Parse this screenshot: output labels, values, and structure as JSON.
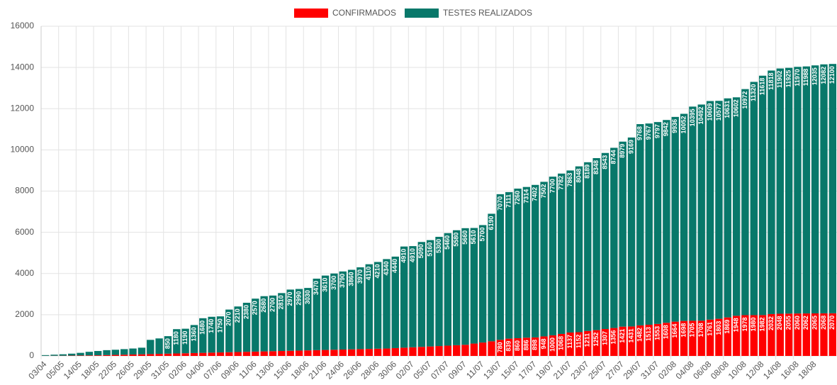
{
  "chart_data": {
    "type": "stacked_bar",
    "categories": [
      "03/04",
      null,
      "05/05",
      null,
      "14/05",
      null,
      "18/05",
      null,
      "22/05",
      null,
      "26/05",
      null,
      "29/05",
      null,
      "31/05",
      null,
      "02/06",
      null,
      "04/06",
      null,
      "07/06",
      null,
      "09/06",
      null,
      "11/06",
      null,
      "13/06",
      null,
      "15/06",
      null,
      "18/06",
      null,
      "21/06",
      null,
      "24/06",
      null,
      "26/06",
      null,
      "28/06",
      null,
      "30/06",
      null,
      "02/07",
      null,
      "05/07",
      null,
      "07/07",
      null,
      "09/07",
      null,
      "11/07",
      null,
      "13/07",
      null,
      "15/07",
      null,
      "17/07",
      null,
      "19/07",
      null,
      "21/07",
      null,
      "23/07",
      null,
      "25/07",
      null,
      "27/07",
      null,
      "29/07",
      null,
      "31/07",
      null,
      "02/08",
      null,
      "04/08",
      null,
      "06/08",
      null,
      "08/08",
      null,
      "10/08",
      null,
      "12/08",
      null,
      "14/08",
      null,
      "16/08",
      null,
      "18/08",
      null,
      null
    ],
    "series": [
      {
        "name": "CONFIRMADOS",
        "color": "#ff0000",
        "values": [
          5,
          8,
          10,
          15,
          20,
          25,
          30,
          40,
          50,
          60,
          70,
          80,
          90,
          100,
          110,
          120,
          130,
          140,
          150,
          160,
          170,
          180,
          190,
          200,
          210,
          220,
          230,
          240,
          250,
          260,
          270,
          280,
          290,
          300,
          310,
          320,
          330,
          340,
          350,
          360,
          380,
          400,
          420,
          440,
          460,
          480,
          500,
          520,
          540,
          600,
          650,
          710,
          780,
          839,
          860,
          886,
          898,
          948,
          1000,
          1068,
          1137,
          1152,
          1211,
          1252,
          1307,
          1356,
          1421,
          1431,
          1482,
          1513,
          1553,
          1608,
          1664,
          1698,
          1705,
          1708,
          1761,
          1803,
          1869,
          1948,
          1978,
          1980,
          1982,
          2032,
          2048,
          2055,
          2060,
          2062,
          2065,
          2068,
          2070
        ]
      },
      {
        "name": "TESTES REALIZADOS",
        "color": "#08786a",
        "values": [
          35,
          52,
          70,
          95,
          130,
          175,
          210,
          240,
          250,
          270,
          290,
          320,
          690,
          750,
          850,
          1180,
          1190,
          1360,
          1680,
          1740,
          1750,
          2070,
          2210,
          2380,
          2570,
          2680,
          2700,
          2810,
          2970,
          2990,
          3030,
          3470,
          3610,
          3700,
          3790,
          3860,
          3970,
          4110,
          4210,
          4340,
          4440,
          4910,
          4910,
          5090,
          5160,
          5300,
          5460,
          5580,
          5660,
          5610,
          5700,
          6190,
          7070,
          7111,
          7260,
          7314,
          7402,
          7502,
          7700,
          7782,
          7863,
          8048,
          8189,
          8348,
          8543,
          8744,
          8979,
          9169,
          9768,
          9767,
          9797,
          9842,
          9936,
          10052,
          10395,
          10492,
          10609,
          10577,
          10631,
          10602,
          10972,
          11320,
          11618,
          11818,
          11902,
          11925,
          11970,
          11988,
          12035,
          12082,
          12100
        ]
      }
    ],
    "ylim": [
      0,
      16000
    ],
    "yticks": [
      0,
      2000,
      4000,
      6000,
      8000,
      10000,
      12000,
      14000,
      16000
    ],
    "grid": true,
    "legend": "top"
  }
}
